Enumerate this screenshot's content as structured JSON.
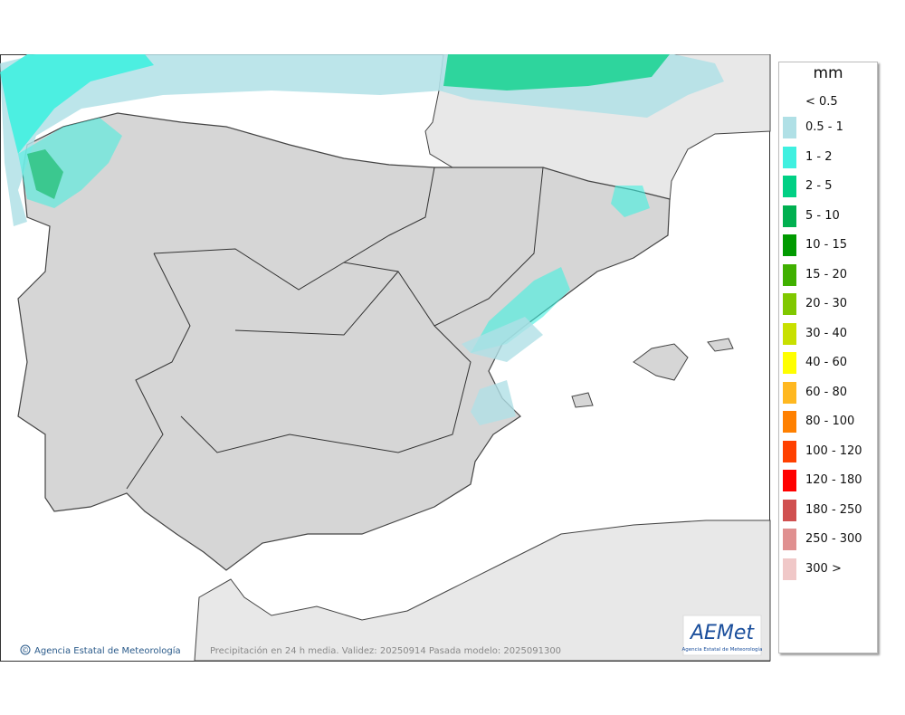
{
  "legend": {
    "title": "mm",
    "entries": [
      {
        "label": "< 0.5",
        "color": "#ffffff"
      },
      {
        "label": "0.5 - 1",
        "color": "#b0e0e6"
      },
      {
        "label": "1 - 2",
        "color": "#3ff0e0"
      },
      {
        "label": "2 - 5",
        "color": "#00d084"
      },
      {
        "label": "5 - 10",
        "color": "#00b050"
      },
      {
        "label": "10 - 15",
        "color": "#009a00"
      },
      {
        "label": "15 - 20",
        "color": "#40b000"
      },
      {
        "label": "20 - 30",
        "color": "#80c800"
      },
      {
        "label": "30 - 40",
        "color": "#c8e000"
      },
      {
        "label": "40 - 60",
        "color": "#ffff00"
      },
      {
        "label": "60 - 80",
        "color": "#ffb820"
      },
      {
        "label": "80 - 100",
        "color": "#ff8000"
      },
      {
        "label": "100 - 120",
        "color": "#ff4000"
      },
      {
        "label": "120 - 180",
        "color": "#ff0000"
      },
      {
        "label": "180 - 250",
        "color": "#d05050"
      },
      {
        "label": "250 - 300",
        "color": "#e09090"
      },
      {
        "label": "300 >",
        "color": "#f0c8c8"
      }
    ]
  },
  "footer": {
    "copyright_symbol": "©",
    "credit": "Agencia Estatal de Meteorología",
    "caption": "Precipitación en 24 h media. Validez: 20250914 Pasada modelo: 2025091300",
    "logo": "AEMet",
    "logo_subtitle": "Agencia Estatal de Meteorología"
  }
}
